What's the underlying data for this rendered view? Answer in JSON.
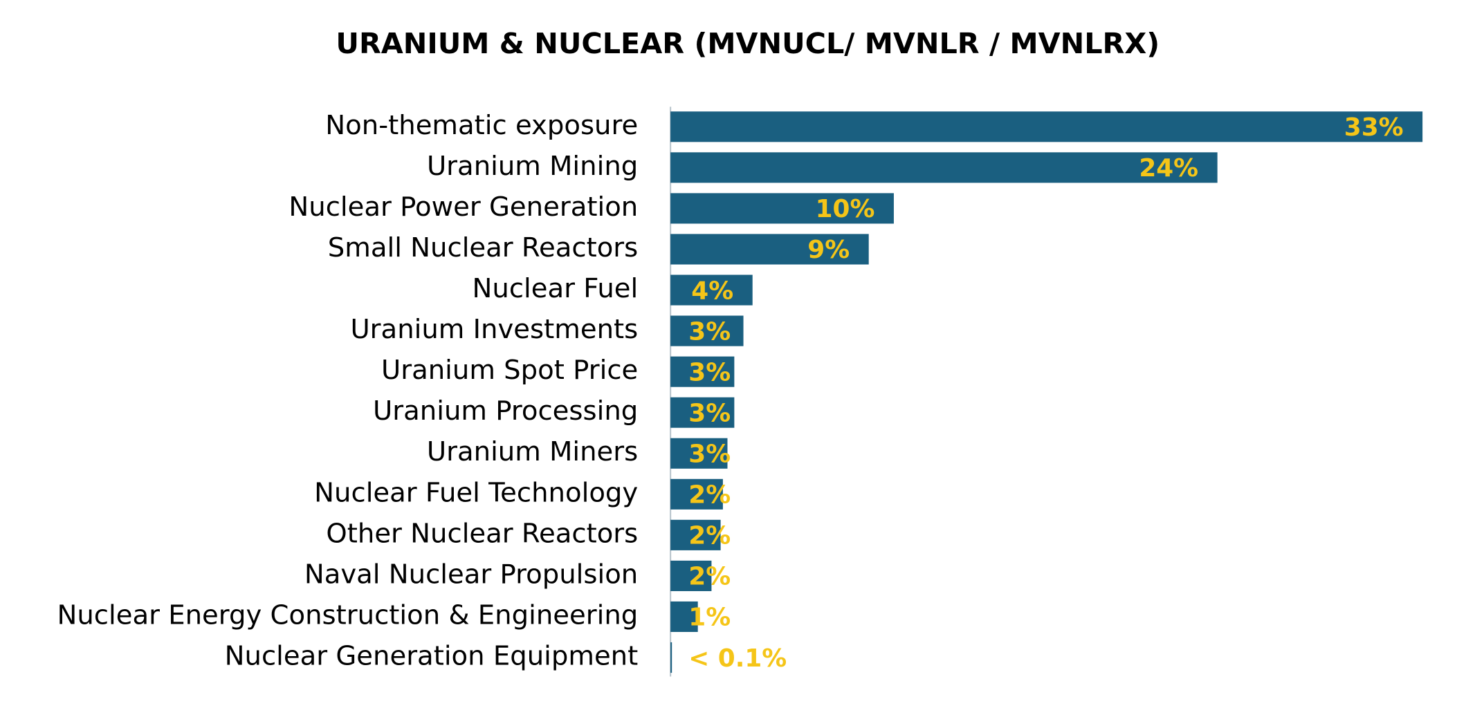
{
  "chart_data": {
    "type": "bar",
    "orientation": "horizontal",
    "title": "URANIUM & NUCLEAR (MVNUCL/ MVNLR / MVNLRX)",
    "categories": [
      "Non-thematic exposure",
      "Uranium Mining",
      "Nuclear Power Generation",
      "Small Nuclear Reactors",
      "Nuclear Fuel",
      "Uranium Investments",
      "Uranium Spot Price",
      "Uranium Processing",
      "Uranium Miners",
      "Nuclear Fuel Technology",
      "Other Nuclear Reactors",
      "Naval Nuclear Propulsion",
      "Nuclear Energy Construction & Engineering",
      "Nuclear Generation Equipment"
    ],
    "values": [
      33,
      24,
      9.8,
      8.7,
      3.6,
      3.2,
      2.8,
      2.8,
      2.5,
      2.3,
      2.2,
      1.8,
      1.2,
      0.05
    ],
    "value_labels": [
      "33%",
      "24%",
      "10%",
      "9%",
      "4%",
      "3%",
      "3%",
      "3%",
      "3%",
      "2%",
      "2%",
      "2%",
      "1%",
      "< 0.1%"
    ],
    "color": "#1a5f80",
    "label_color": "#f5c518"
  }
}
